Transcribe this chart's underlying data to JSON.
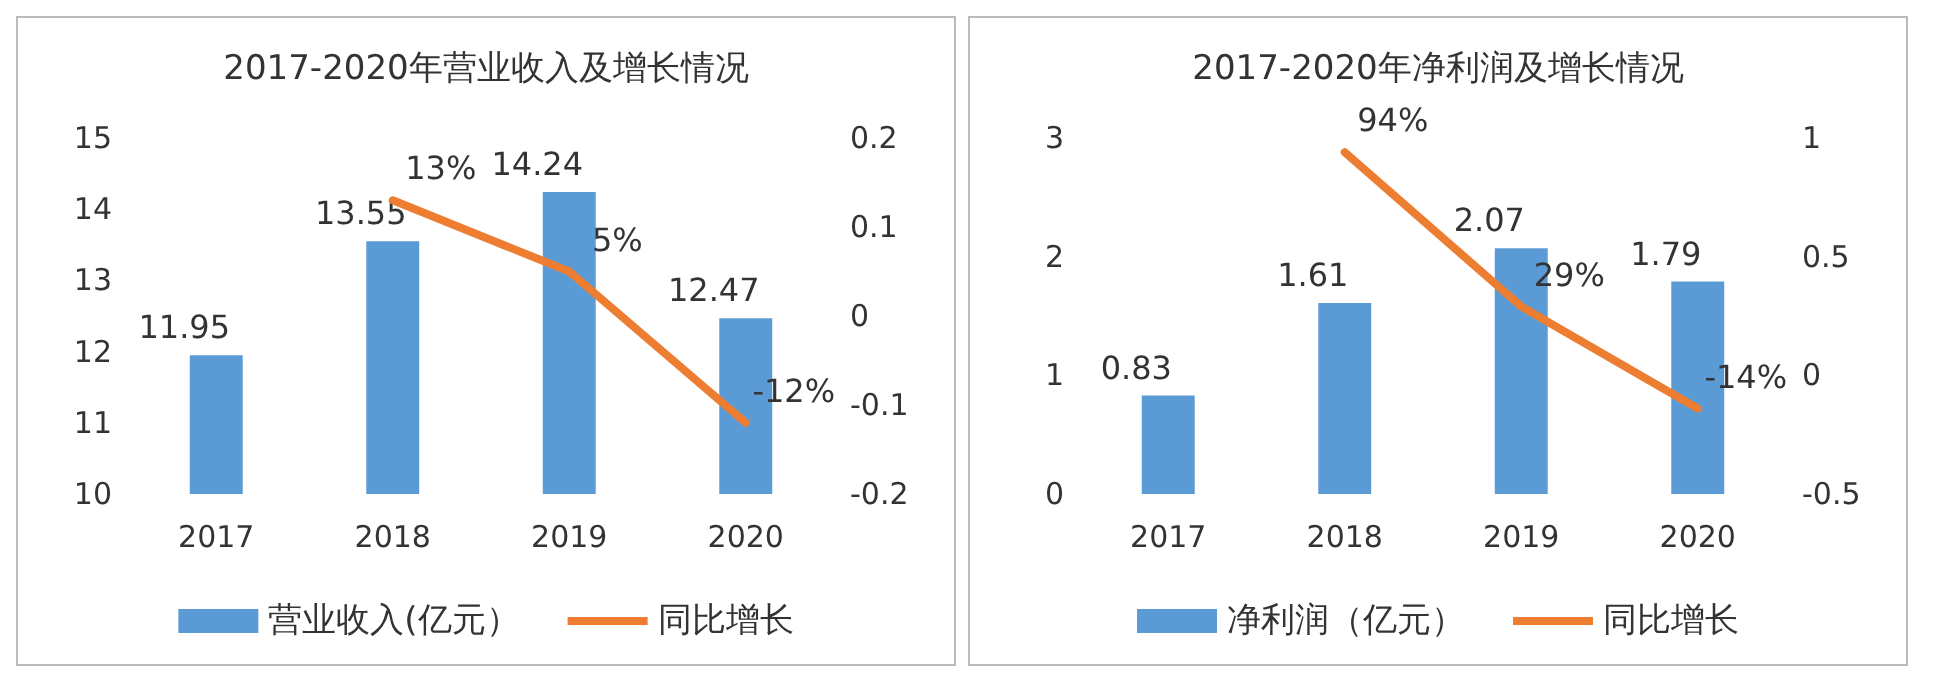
{
  "chart_data": [
    {
      "type": "bar",
      "title": "2017-2020年营业收入及增长情况",
      "categories": [
        "2017",
        "2018",
        "2019",
        "2020"
      ],
      "ylim": [
        10,
        15
      ],
      "yticks": [
        10,
        11,
        12,
        13,
        14,
        15
      ],
      "y2lim": [
        -0.2,
        0.2
      ],
      "y2ticks": [
        -0.2,
        -0.1,
        0,
        0.1,
        0.2
      ],
      "grid": false,
      "legend": "bottom",
      "series": [
        {
          "name": "营业收入(亿元）",
          "color": "#5b9bd5",
          "values": [
            11.95,
            13.55,
            14.24,
            12.47
          ],
          "value_labels": [
            "11.95",
            "13.55",
            "14.24",
            "12.47"
          ]
        },
        {
          "name": "同比增长",
          "type": "line",
          "axis": "y2",
          "color": "#ed7d31",
          "values": [
            null,
            0.13,
            0.05,
            -0.12
          ],
          "value_labels": [
            null,
            "13%",
            "5%",
            "-12%"
          ]
        }
      ]
    },
    {
      "type": "bar",
      "title": "2017-2020年净利润及增长情况",
      "categories": [
        "2017",
        "2018",
        "2019",
        "2020"
      ],
      "ylim": [
        0,
        3
      ],
      "yticks": [
        0,
        1,
        2,
        3
      ],
      "y2lim": [
        -0.5,
        1
      ],
      "y2ticks": [
        -0.5,
        0,
        0.5,
        1
      ],
      "grid": false,
      "legend": "bottom",
      "series": [
        {
          "name": "净利润（亿元）",
          "color": "#5b9bd5",
          "values": [
            0.83,
            1.61,
            2.07,
            1.79
          ],
          "value_labels": [
            "0.83",
            "1.61",
            "2.07",
            "1.79"
          ]
        },
        {
          "name": "同比增长",
          "type": "line",
          "axis": "y2",
          "color": "#ed7d31",
          "values": [
            null,
            0.94,
            0.29,
            -0.14
          ],
          "value_labels": [
            null,
            "94%",
            "29%",
            "-14%"
          ]
        }
      ]
    }
  ]
}
